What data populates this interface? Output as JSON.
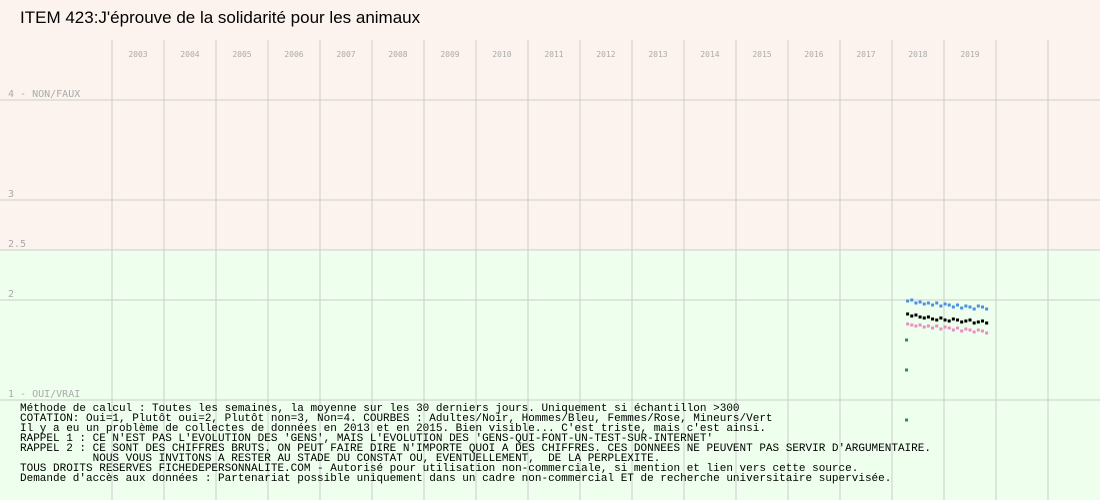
{
  "chart_data": {
    "type": "scatter",
    "title": "ITEM 423:J'éprouve de la solidarité pour les animaux",
    "categories": [
      "2003",
      "2004",
      "2005",
      "2006",
      "2007",
      "2008",
      "2009",
      "2010",
      "2011",
      "2012",
      "2013",
      "2014",
      "2015",
      "2016",
      "2017",
      "2018",
      "2019",
      null,
      null
    ],
    "xlim": [
      2003,
      2022
    ],
    "ylim": [
      0,
      5
    ],
    "yticks": [
      {
        "value": 4,
        "label": "4 - NON/FAUX"
      },
      3,
      2.5,
      2,
      {
        "value": 1,
        "label": "1 - OUI/VRAI"
      }
    ],
    "background": {
      "split": 2.5,
      "upper_color": "#fdf3ee",
      "lower_color": "#eeffee"
    },
    "grid": true,
    "series": [
      {
        "color": "#000000",
        "x": [
          2018.3,
          2018.38,
          2018.46,
          2018.54,
          2018.62,
          2018.7,
          2018.78,
          2018.86,
          2018.94,
          2019.02,
          2019.1,
          2019.18,
          2019.26,
          2019.34,
          2019.42,
          2019.5,
          2019.58,
          2019.66,
          2019.74,
          2019.82
        ],
        "values": [
          1.86,
          1.84,
          1.85,
          1.83,
          1.82,
          1.83,
          1.81,
          1.8,
          1.82,
          1.8,
          1.79,
          1.81,
          1.8,
          1.78,
          1.79,
          1.8,
          1.77,
          1.78,
          1.79,
          1.77
        ]
      },
      {
        "color": "#4a90e2",
        "x": [
          2018.3,
          2018.38,
          2018.46,
          2018.54,
          2018.62,
          2018.7,
          2018.78,
          2018.86,
          2018.94,
          2019.02,
          2019.1,
          2019.18,
          2019.26,
          2019.34,
          2019.42,
          2019.5,
          2019.58,
          2019.66,
          2019.74,
          2019.82
        ],
        "values": [
          1.99,
          2.0,
          1.97,
          1.98,
          1.96,
          1.97,
          1.95,
          1.97,
          1.94,
          1.96,
          1.95,
          1.93,
          1.95,
          1.92,
          1.94,
          1.93,
          1.91,
          1.94,
          1.93,
          1.91
        ]
      },
      {
        "color": "#e88fc0",
        "x": [
          2018.3,
          2018.38,
          2018.46,
          2018.54,
          2018.62,
          2018.7,
          2018.78,
          2018.86,
          2018.94,
          2019.02,
          2019.1,
          2019.18,
          2019.26,
          2019.34,
          2019.42,
          2019.5,
          2019.58,
          2019.66,
          2019.74,
          2019.82
        ],
        "values": [
          1.76,
          1.75,
          1.74,
          1.75,
          1.73,
          1.74,
          1.72,
          1.74,
          1.71,
          1.73,
          1.72,
          1.7,
          1.72,
          1.69,
          1.71,
          1.7,
          1.68,
          1.7,
          1.69,
          1.67
        ]
      },
      {
        "color": "#2e8b57",
        "x": [
          2018.28,
          2018.28,
          2018.28
        ],
        "values": [
          1.6,
          1.3,
          0.8
        ]
      }
    ],
    "notes": [
      "Méthode de calcul : Toutes les semaines, la moyenne sur les 30 derniers jours. Uniquement si échantillon >300",
      "COTATION: Oui=1, Plutôt oui=2, Plutôt non=3, Non=4. COURBES : Adultes/Noir, Hommes/Bleu, Femmes/Rose, Mineurs/Vert",
      "Il y a eu un problème de collectes de données en 2013 et en 2015. Bien visible... C'est triste, mais c'est ainsi.",
      "RAPPEL 1 : CE N'EST PAS L'EVOLUTION DES 'GENS', MAIS L'EVOLUTION DES 'GENS-QUI-FONT-UN-TEST-SUR-INTERNET'",
      "RAPPEL 2 : CE SONT DES CHIFFRES BRUTS. ON PEUT FAIRE DIRE N'IMPORTE QUOI A DES CHIFFRES. CES DONNEES NE PEUVENT PAS SERVIR D'ARGUMENTAIRE.\n           NOUS VOUS INVITONS A RESTER AU STADE DU CONSTAT OU, EVENTUELLEMENT,  DE LA PERPLEXITE.",
      "TOUS DROITS RESERVES FICHEDEPERSONNALITE.COM - Autorisé pour utilisation non-commerciale, si mention et lien vers cette source.",
      "Demande d'accès aux données : Partenariat possible uniquement dans un cadre non-commercial ET de recherche universitaire supervisée."
    ]
  }
}
